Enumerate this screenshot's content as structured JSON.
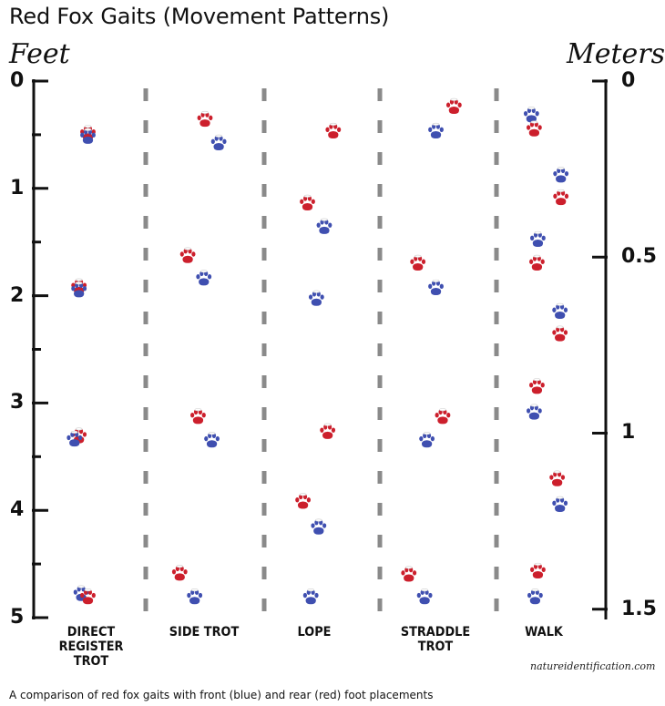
{
  "title": "Red Fox Gaits (Movement Patterns)",
  "left_axis": {
    "unit": "Feet",
    "ticks": [
      {
        "label": "0",
        "value": 0
      },
      {
        "label": "1",
        "value": 1
      },
      {
        "label": "2",
        "value": 2
      },
      {
        "label": "3",
        "value": 3
      },
      {
        "label": "4",
        "value": 4
      },
      {
        "label": "5",
        "value": 5
      }
    ],
    "minor_ticks": [
      0.5,
      1.5,
      2.5,
      3.5,
      4.5
    ]
  },
  "right_axis": {
    "unit": "Meters",
    "ticks": [
      {
        "label": "0",
        "value": 0
      },
      {
        "label": "0.5",
        "value": 0.5
      },
      {
        "label": "1",
        "value": 1
      },
      {
        "label": "1.5",
        "value": 1.5
      }
    ]
  },
  "colors": {
    "front": "#3f4fb0",
    "rear": "#cc1f2c",
    "divider": "#8a8a8a",
    "axis": "#111111"
  },
  "gaits": [
    {
      "label_lines": [
        "DIRECT",
        "REGISTER",
        "TROT"
      ],
      "prints": [
        {
          "foot": "rear",
          "lateral": 0.5,
          "feet": 0.5
        },
        {
          "foot": "front",
          "lateral": 0.5,
          "feet": 0.53
        },
        {
          "foot": "rear",
          "lateral": 0.42,
          "feet": 1.93
        },
        {
          "foot": "front",
          "lateral": 0.42,
          "feet": 1.96
        },
        {
          "foot": "rear",
          "lateral": 0.42,
          "feet": 3.32
        },
        {
          "foot": "front",
          "lateral": 0.38,
          "feet": 3.35
        },
        {
          "foot": "front",
          "lateral": 0.44,
          "feet": 4.79
        },
        {
          "foot": "rear",
          "lateral": 0.5,
          "feet": 4.82
        }
      ]
    },
    {
      "label_lines": [
        "SIDE TROT"
      ],
      "prints": [
        {
          "foot": "rear",
          "lateral": 0.5,
          "feet": 0.37
        },
        {
          "foot": "front",
          "lateral": 0.62,
          "feet": 0.59
        },
        {
          "foot": "rear",
          "lateral": 0.35,
          "feet": 1.64
        },
        {
          "foot": "front",
          "lateral": 0.49,
          "feet": 1.85
        },
        {
          "foot": "rear",
          "lateral": 0.44,
          "feet": 3.14
        },
        {
          "foot": "front",
          "lateral": 0.56,
          "feet": 3.36
        },
        {
          "foot": "rear",
          "lateral": 0.28,
          "feet": 4.6
        },
        {
          "foot": "front",
          "lateral": 0.41,
          "feet": 4.82
        }
      ]
    },
    {
      "label_lines": [
        "LOPE"
      ],
      "prints": [
        {
          "foot": "rear",
          "lateral": 0.6,
          "feet": 0.48
        },
        {
          "foot": "rear",
          "lateral": 0.37,
          "feet": 1.15
        },
        {
          "foot": "front",
          "lateral": 0.52,
          "feet": 1.37
        },
        {
          "foot": "front",
          "lateral": 0.45,
          "feet": 2.04
        },
        {
          "foot": "rear",
          "lateral": 0.55,
          "feet": 3.28
        },
        {
          "foot": "rear",
          "lateral": 0.33,
          "feet": 3.93
        },
        {
          "foot": "front",
          "lateral": 0.47,
          "feet": 4.17
        },
        {
          "foot": "front",
          "lateral": 0.4,
          "feet": 4.82
        }
      ]
    },
    {
      "label_lines": [
        "STRADDLE",
        "TROT"
      ],
      "prints": [
        {
          "foot": "rear",
          "lateral": 0.64,
          "feet": 0.25
        },
        {
          "foot": "front",
          "lateral": 0.48,
          "feet": 0.48
        },
        {
          "foot": "rear",
          "lateral": 0.32,
          "feet": 1.71
        },
        {
          "foot": "front",
          "lateral": 0.48,
          "feet": 1.94
        },
        {
          "foot": "rear",
          "lateral": 0.54,
          "feet": 3.14
        },
        {
          "foot": "front",
          "lateral": 0.4,
          "feet": 3.36
        },
        {
          "foot": "rear",
          "lateral": 0.24,
          "feet": 4.61
        },
        {
          "foot": "front",
          "lateral": 0.38,
          "feet": 4.82
        }
      ]
    },
    {
      "label_lines": [
        "WALK"
      ],
      "prints": [
        {
          "foot": "front",
          "lateral": 0.36,
          "feet": 0.33
        },
        {
          "foot": "rear",
          "lateral": 0.39,
          "feet": 0.46
        },
        {
          "foot": "front",
          "lateral": 0.68,
          "feet": 0.89
        },
        {
          "foot": "rear",
          "lateral": 0.68,
          "feet": 1.1
        },
        {
          "foot": "front",
          "lateral": 0.43,
          "feet": 1.49
        },
        {
          "foot": "rear",
          "lateral": 0.42,
          "feet": 1.71
        },
        {
          "foot": "front",
          "lateral": 0.67,
          "feet": 2.16
        },
        {
          "foot": "rear",
          "lateral": 0.67,
          "feet": 2.37
        },
        {
          "foot": "rear",
          "lateral": 0.42,
          "feet": 2.86
        },
        {
          "foot": "front",
          "lateral": 0.39,
          "feet": 3.1
        },
        {
          "foot": "rear",
          "lateral": 0.64,
          "feet": 3.72
        },
        {
          "foot": "front",
          "lateral": 0.67,
          "feet": 3.96
        },
        {
          "foot": "rear",
          "lateral": 0.43,
          "feet": 4.58
        },
        {
          "foot": "front",
          "lateral": 0.4,
          "feet": 4.82
        }
      ]
    }
  ],
  "credit": "natureidentification.com",
  "caption": "A comparison of red fox gaits with front (blue) and rear (red) foot placements"
}
